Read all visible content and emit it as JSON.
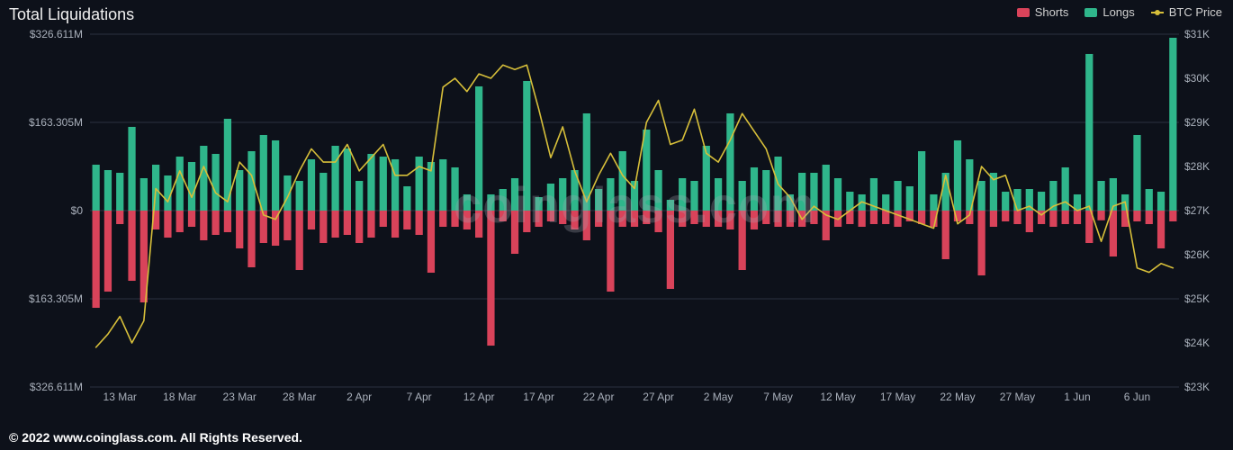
{
  "title": "Total Liquidations",
  "watermark": "coinglass.com",
  "footer": "© 2022 www.coinglass.com. All Rights Reserved.",
  "legend": {
    "shorts": {
      "label": "Shorts",
      "color": "#d9435a"
    },
    "longs": {
      "label": "Longs",
      "color": "#2fb68b"
    },
    "price": {
      "label": "BTC Price",
      "color": "#d7bf3a"
    }
  },
  "chart": {
    "type": "bar+line",
    "background_color": "#0d111a",
    "grid_color": "#2a3140",
    "bar_width_ratio": 0.62,
    "left_axis": {
      "min": -326.611,
      "max": 326.611,
      "ticks": [
        {
          "v": 326.611,
          "label": "$326.611M"
        },
        {
          "v": 163.305,
          "label": "$163.305M"
        },
        {
          "v": 0,
          "label": "$0"
        },
        {
          "v": -163.305,
          "label": "$163.305M"
        },
        {
          "v": -326.611,
          "label": "$326.611M"
        }
      ],
      "label_fontsize": 12,
      "label_color": "#a9b0bb"
    },
    "right_axis": {
      "min": 23,
      "max": 31,
      "ticks": [
        {
          "v": 31,
          "label": "$31K"
        },
        {
          "v": 30,
          "label": "$30K"
        },
        {
          "v": 29,
          "label": "$29K"
        },
        {
          "v": 28,
          "label": "$28K"
        },
        {
          "v": 27,
          "label": "$27K"
        },
        {
          "v": 26,
          "label": "$26K"
        },
        {
          "v": 25,
          "label": "$25K"
        },
        {
          "v": 24,
          "label": "$24K"
        },
        {
          "v": 23,
          "label": "$23K"
        }
      ],
      "label_fontsize": 12,
      "label_color": "#a9b0bb"
    },
    "x_ticks": [
      {
        "i": 2,
        "label": "13 Mar"
      },
      {
        "i": 7,
        "label": "18 Mar"
      },
      {
        "i": 12,
        "label": "23 Mar"
      },
      {
        "i": 17,
        "label": "28 Mar"
      },
      {
        "i": 22,
        "label": "2 Apr"
      },
      {
        "i": 27,
        "label": "7 Apr"
      },
      {
        "i": 32,
        "label": "12 Apr"
      },
      {
        "i": 37,
        "label": "17 Apr"
      },
      {
        "i": 42,
        "label": "22 Apr"
      },
      {
        "i": 47,
        "label": "27 Apr"
      },
      {
        "i": 52,
        "label": "2 May"
      },
      {
        "i": 57,
        "label": "7 May"
      },
      {
        "i": 62,
        "label": "12 May"
      },
      {
        "i": 67,
        "label": "17 May"
      },
      {
        "i": 72,
        "label": "22 May"
      },
      {
        "i": 77,
        "label": "27 May"
      },
      {
        "i": 82,
        "label": "1 Jun"
      },
      {
        "i": 87,
        "label": "6 Jun"
      }
    ],
    "longs": [
      85,
      75,
      70,
      155,
      60,
      85,
      65,
      100,
      90,
      120,
      105,
      170,
      75,
      110,
      140,
      130,
      65,
      55,
      95,
      70,
      120,
      115,
      55,
      105,
      100,
      95,
      45,
      100,
      90,
      95,
      80,
      30,
      230,
      30,
      40,
      60,
      240,
      25,
      50,
      60,
      75,
      180,
      40,
      60,
      110,
      55,
      150,
      75,
      20,
      60,
      55,
      120,
      60,
      180,
      55,
      80,
      75,
      100,
      30,
      70,
      70,
      85,
      60,
      35,
      30,
      60,
      30,
      55,
      45,
      110,
      30,
      70,
      130,
      95,
      55,
      70,
      35,
      40,
      40,
      35,
      55,
      80,
      30,
      290,
      55,
      60,
      30,
      140,
      40,
      35,
      320
    ],
    "shorts": [
      180,
      150,
      25,
      130,
      170,
      35,
      50,
      40,
      30,
      55,
      45,
      40,
      70,
      105,
      60,
      65,
      55,
      110,
      35,
      60,
      50,
      45,
      60,
      50,
      30,
      50,
      35,
      45,
      115,
      30,
      30,
      35,
      50,
      250,
      20,
      80,
      40,
      30,
      20,
      25,
      35,
      55,
      30,
      150,
      30,
      30,
      25,
      40,
      145,
      30,
      25,
      30,
      30,
      35,
      110,
      35,
      25,
      30,
      30,
      30,
      25,
      55,
      30,
      25,
      30,
      25,
      25,
      30,
      20,
      25,
      30,
      90,
      20,
      25,
      120,
      30,
      20,
      25,
      40,
      25,
      30,
      25,
      25,
      60,
      18,
      85,
      30,
      20,
      25,
      70,
      20
    ],
    "btc_price": [
      23.9,
      24.2,
      24.6,
      24.0,
      24.5,
      27.5,
      27.2,
      27.9,
      27.3,
      28.0,
      27.4,
      27.2,
      28.1,
      27.8,
      26.9,
      26.8,
      27.3,
      27.9,
      28.4,
      28.1,
      28.1,
      28.5,
      27.9,
      28.2,
      28.5,
      27.8,
      27.8,
      28.0,
      27.9,
      29.8,
      30.0,
      29.7,
      30.1,
      30.0,
      30.3,
      30.2,
      30.3,
      29.3,
      28.2,
      28.9,
      27.9,
      27.2,
      27.8,
      28.3,
      27.8,
      27.5,
      29.0,
      29.5,
      28.5,
      28.6,
      29.3,
      28.3,
      28.1,
      28.6,
      29.2,
      28.8,
      28.4,
      27.6,
      27.3,
      26.8,
      27.1,
      26.9,
      26.8,
      27.0,
      27.2,
      27.1,
      27.0,
      26.9,
      26.8,
      26.7,
      26.6,
      27.8,
      26.7,
      26.9,
      28.0,
      27.7,
      27.8,
      27.0,
      27.1,
      26.9,
      27.1,
      27.2,
      27.0,
      27.1,
      26.3,
      27.1,
      27.2,
      25.7,
      25.6,
      25.8,
      25.7
    ],
    "line_width": 1.6,
    "line_color": "#d7bf3a",
    "bar_colors": {
      "longs": "#2fb68b",
      "shorts": "#d9435a"
    }
  },
  "title_fontsize": 18
}
